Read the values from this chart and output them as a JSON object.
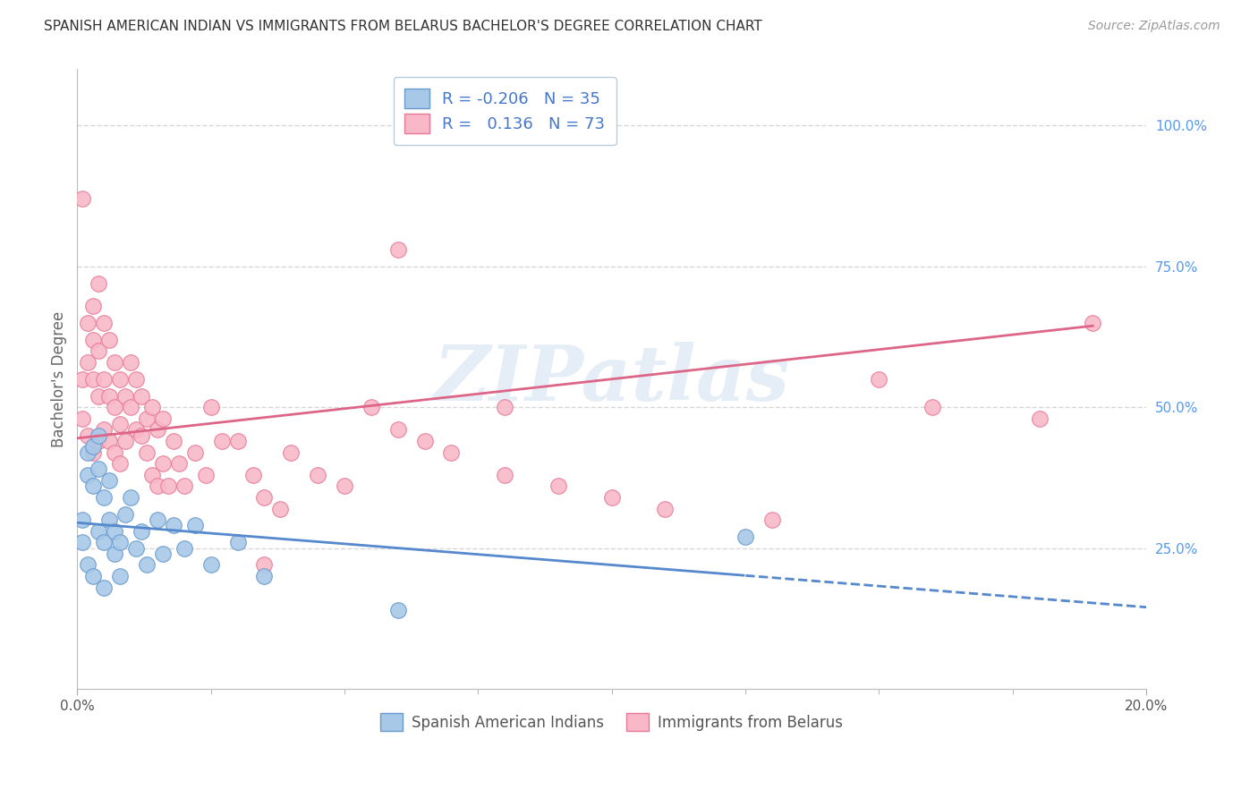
{
  "title": "SPANISH AMERICAN INDIAN VS IMMIGRANTS FROM BELARUS BACHELOR'S DEGREE CORRELATION CHART",
  "source": "Source: ZipAtlas.com",
  "ylabel": "Bachelor's Degree",
  "right_ytick_labels": [
    "100.0%",
    "75.0%",
    "50.0%",
    "25.0%"
  ],
  "right_ytick_values": [
    1.0,
    0.75,
    0.5,
    0.25
  ],
  "xlim": [
    0.0,
    0.2
  ],
  "ylim": [
    0.0,
    1.1
  ],
  "watermark": "ZIPatlas",
  "blue_R": -0.206,
  "blue_N": 35,
  "pink_R": 0.136,
  "pink_N": 73,
  "blue_color": "#a8c8e8",
  "pink_color": "#f8b8c8",
  "blue_edge_color": "#6699cc",
  "pink_edge_color": "#e87898",
  "blue_line_color": "#5588cc",
  "pink_line_color": "#dd6688",
  "grid_color": "#cccccc",
  "background_color": "#ffffff",
  "blue_x": [
    0.001,
    0.001,
    0.002,
    0.002,
    0.002,
    0.003,
    0.003,
    0.003,
    0.004,
    0.004,
    0.004,
    0.005,
    0.005,
    0.005,
    0.006,
    0.006,
    0.007,
    0.007,
    0.008,
    0.008,
    0.009,
    0.01,
    0.011,
    0.012,
    0.013,
    0.015,
    0.016,
    0.018,
    0.02,
    0.022,
    0.025,
    0.03,
    0.035,
    0.06,
    0.125
  ],
  "blue_y": [
    0.3,
    0.26,
    0.42,
    0.38,
    0.22,
    0.43,
    0.36,
    0.2,
    0.45,
    0.39,
    0.28,
    0.34,
    0.26,
    0.18,
    0.37,
    0.3,
    0.28,
    0.24,
    0.26,
    0.2,
    0.31,
    0.34,
    0.25,
    0.28,
    0.22,
    0.3,
    0.24,
    0.29,
    0.25,
    0.29,
    0.22,
    0.26,
    0.2,
    0.14,
    0.27
  ],
  "pink_x": [
    0.001,
    0.001,
    0.001,
    0.002,
    0.002,
    0.002,
    0.003,
    0.003,
    0.003,
    0.003,
    0.004,
    0.004,
    0.004,
    0.004,
    0.005,
    0.005,
    0.005,
    0.006,
    0.006,
    0.006,
    0.007,
    0.007,
    0.007,
    0.008,
    0.008,
    0.008,
    0.009,
    0.009,
    0.01,
    0.01,
    0.011,
    0.011,
    0.012,
    0.012,
    0.013,
    0.013,
    0.014,
    0.014,
    0.015,
    0.015,
    0.016,
    0.016,
    0.017,
    0.018,
    0.019,
    0.02,
    0.022,
    0.024,
    0.025,
    0.027,
    0.03,
    0.033,
    0.035,
    0.038,
    0.04,
    0.045,
    0.05,
    0.055,
    0.06,
    0.065,
    0.07,
    0.08,
    0.09,
    0.1,
    0.11,
    0.13,
    0.15,
    0.16,
    0.18,
    0.19,
    0.06,
    0.035,
    0.08
  ],
  "pink_y": [
    0.87,
    0.55,
    0.48,
    0.65,
    0.58,
    0.45,
    0.68,
    0.62,
    0.55,
    0.42,
    0.72,
    0.6,
    0.52,
    0.44,
    0.65,
    0.55,
    0.46,
    0.62,
    0.52,
    0.44,
    0.58,
    0.5,
    0.42,
    0.55,
    0.47,
    0.4,
    0.52,
    0.44,
    0.58,
    0.5,
    0.55,
    0.46,
    0.52,
    0.45,
    0.48,
    0.42,
    0.5,
    0.38,
    0.46,
    0.36,
    0.48,
    0.4,
    0.36,
    0.44,
    0.4,
    0.36,
    0.42,
    0.38,
    0.5,
    0.44,
    0.44,
    0.38,
    0.34,
    0.32,
    0.42,
    0.38,
    0.36,
    0.5,
    0.46,
    0.44,
    0.42,
    0.38,
    0.36,
    0.34,
    0.32,
    0.3,
    0.55,
    0.5,
    0.48,
    0.65,
    0.78,
    0.22,
    0.5
  ],
  "legend_label_blue": "Spanish American Indians",
  "legend_label_pink": "Immigrants from Belarus"
}
